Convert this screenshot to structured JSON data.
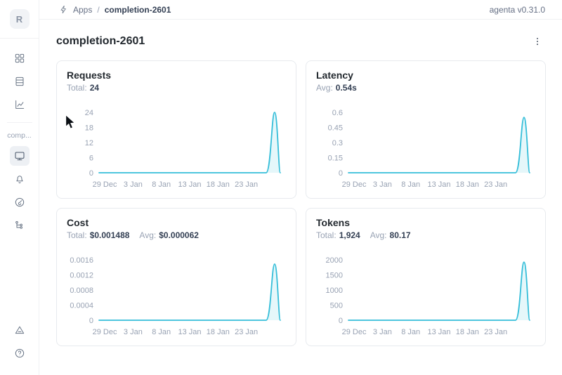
{
  "header": {
    "breadcrumb": {
      "section": "Apps",
      "separator": "/",
      "current": "completion-2601"
    },
    "version": "agenta v0.31.0"
  },
  "sidebar": {
    "avatar_letter": "R",
    "workspace_label": "comp...",
    "nav_top": [
      {
        "icon": "grid-icon"
      },
      {
        "icon": "list-icon"
      },
      {
        "icon": "chart-icon"
      }
    ],
    "nav_app": [
      {
        "icon": "monitor-icon",
        "active": true
      },
      {
        "icon": "bell-icon"
      },
      {
        "icon": "gauge-icon"
      },
      {
        "icon": "tree-icon"
      }
    ],
    "nav_bottom": [
      {
        "icon": "triangle-alert-icon"
      },
      {
        "icon": "help-icon"
      }
    ]
  },
  "page": {
    "title": "completion-2601"
  },
  "accent_color": "#35bed9",
  "chart_data": [
    {
      "type": "line",
      "title": "Requests",
      "stats": [
        {
          "label": "Total:",
          "value": "24"
        }
      ],
      "x_tick_labels": [
        "29 Dec",
        "3 Jan",
        "8 Jan",
        "13 Jan",
        "18 Jan",
        "23 Jan"
      ],
      "x_tick_days": [
        1,
        6,
        11,
        16,
        21,
        26
      ],
      "x_domain_days": [
        0,
        32
      ],
      "y_tick_labels": [
        "0",
        "6",
        "12",
        "18",
        "24"
      ],
      "y_tick_values": [
        0,
        6,
        12,
        18,
        24
      ],
      "ylim": [
        0,
        24
      ],
      "peak_value": 24,
      "spike_day": 31,
      "points": [
        [
          "28 Dec",
          0
        ],
        [
          "27 Jan",
          0
        ],
        [
          "28 Jan",
          24
        ],
        [
          "29 Jan",
          0
        ]
      ],
      "line_color": "#35bed9",
      "legend": "none",
      "grid": "off"
    },
    {
      "type": "line",
      "title": "Latency",
      "stats": [
        {
          "label": "Avg:",
          "value": "0.54s"
        }
      ],
      "x_tick_labels": [
        "29 Dec",
        "3 Jan",
        "8 Jan",
        "13 Jan",
        "18 Jan",
        "23 Jan"
      ],
      "x_tick_days": [
        1,
        6,
        11,
        16,
        21,
        26
      ],
      "x_domain_days": [
        0,
        32
      ],
      "y_tick_labels": [
        "0",
        "0.15",
        "0.3",
        "0.45",
        "0.6"
      ],
      "y_tick_values": [
        0,
        0.15,
        0.3,
        0.45,
        0.6
      ],
      "ylim": [
        0,
        0.6
      ],
      "peak_value": 0.55,
      "spike_day": 31,
      "points": [
        [
          "28 Dec",
          0
        ],
        [
          "27 Jan",
          0
        ],
        [
          "28 Jan",
          0.55
        ],
        [
          "29 Jan",
          0
        ]
      ],
      "line_color": "#35bed9",
      "legend": "none",
      "grid": "off"
    },
    {
      "type": "line",
      "title": "Cost",
      "stats": [
        {
          "label": "Total:",
          "value": "$0.001488"
        },
        {
          "label": "Avg:",
          "value": "$0.000062"
        }
      ],
      "x_tick_labels": [
        "29 Dec",
        "3 Jan",
        "8 Jan",
        "13 Jan",
        "18 Jan",
        "23 Jan"
      ],
      "x_tick_days": [
        1,
        6,
        11,
        16,
        21,
        26
      ],
      "x_domain_days": [
        0,
        32
      ],
      "y_tick_labels": [
        "0",
        "0.0004",
        "0.0008",
        "0.0012",
        "0.0016"
      ],
      "y_tick_values": [
        0,
        0.0004,
        0.0008,
        0.0012,
        0.0016
      ],
      "ylim": [
        0,
        0.0016
      ],
      "peak_value": 0.001488,
      "spike_day": 31,
      "points": [
        [
          "28 Dec",
          0
        ],
        [
          "27 Jan",
          0
        ],
        [
          "28 Jan",
          0.001488
        ],
        [
          "29 Jan",
          0
        ]
      ],
      "line_color": "#35bed9",
      "legend": "none",
      "grid": "off"
    },
    {
      "type": "line",
      "title": "Tokens",
      "stats": [
        {
          "label": "Total:",
          "value": "1,924"
        },
        {
          "label": "Avg:",
          "value": "80.17"
        }
      ],
      "x_tick_labels": [
        "29 Dec",
        "3 Jan",
        "8 Jan",
        "13 Jan",
        "18 Jan",
        "23 Jan"
      ],
      "x_tick_days": [
        1,
        6,
        11,
        16,
        21,
        26
      ],
      "x_domain_days": [
        0,
        32
      ],
      "y_tick_labels": [
        "0",
        "500",
        "1000",
        "1500",
        "2000"
      ],
      "y_tick_values": [
        0,
        500,
        1000,
        1500,
        2000
      ],
      "ylim": [
        0,
        2000
      ],
      "peak_value": 1924,
      "spike_day": 31,
      "points": [
        [
          "28 Dec",
          0
        ],
        [
          "27 Jan",
          0
        ],
        [
          "28 Jan",
          1924
        ],
        [
          "29 Jan",
          0
        ]
      ],
      "line_color": "#35bed9",
      "legend": "none",
      "grid": "off"
    }
  ]
}
